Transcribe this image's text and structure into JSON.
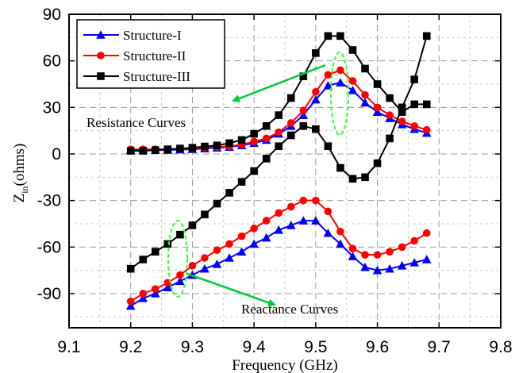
{
  "chart_data": {
    "type": "line",
    "xlabel": "Frequency (GHz)",
    "ylabel_main": "Z",
    "ylabel_sub": "in",
    "ylabel_rest": "(ohms)",
    "xlim": [
      9.1,
      9.8
    ],
    "ylim": [
      -112,
      90
    ],
    "x_ticks": [
      9.1,
      9.2,
      9.3,
      9.4,
      9.5,
      9.6,
      9.7,
      9.8
    ],
    "x_tick_labels": [
      "9.1",
      "9.2",
      "9.3",
      "9.4",
      "9.5",
      "9.6",
      "9.7",
      "9.8"
    ],
    "y_ticks": [
      90,
      60,
      30,
      0,
      -30,
      -60,
      -90
    ],
    "y_tick_labels": [
      "90",
      "60",
      "30",
      "0",
      "-30",
      "-60",
      "-90"
    ],
    "grid": true,
    "legend_position": "top-left",
    "x": [
      9.2,
      9.22,
      9.24,
      9.26,
      9.28,
      9.3,
      9.32,
      9.34,
      9.36,
      9.38,
      9.4,
      9.42,
      9.44,
      9.46,
      9.48,
      9.5,
      9.52,
      9.54,
      9.56,
      9.58,
      9.6,
      9.62,
      9.64,
      9.66,
      9.68
    ],
    "series": [
      {
        "name": "Structure-I",
        "color": "#0000ff",
        "marker": "triangle",
        "curves": [
          [
            2.5,
            2.5,
            2.5,
            2.5,
            2.8,
            3,
            3.5,
            4,
            4.5,
            5.5,
            7,
            9,
            13,
            18,
            25,
            35,
            44,
            46,
            41,
            33,
            27,
            23,
            19,
            16,
            13.5
          ],
          [
            -98,
            -93,
            -90,
            -86,
            -82,
            -78,
            -74,
            -71,
            -67,
            -63,
            -58,
            -54,
            -49,
            -46,
            -43,
            -43,
            -51,
            -58,
            -66,
            -73,
            -75,
            -74,
            -72,
            -70,
            -68
          ]
        ]
      },
      {
        "name": "Structure-II",
        "color": "#ff0000",
        "marker": "circle",
        "curves": [
          [
            3,
            3,
            3,
            3,
            3.2,
            3.5,
            4,
            4.5,
            5,
            6,
            8,
            10,
            14,
            20,
            28,
            40,
            51,
            54,
            47,
            38,
            30,
            25,
            21,
            18,
            15.5
          ],
          [
            -95,
            -90,
            -87,
            -83,
            -78,
            -72,
            -67,
            -62,
            -58,
            -53,
            -48,
            -43,
            -38,
            -34,
            -30,
            -30,
            -37,
            -50,
            -61,
            -65,
            -65,
            -63,
            -60,
            -56,
            -51
          ]
        ]
      },
      {
        "name": "Structure-III",
        "color": "#000000",
        "marker": "square",
        "curves": [
          [
            2,
            2,
            2.5,
            3,
            3.5,
            4,
            4.8,
            5.5,
            7,
            9,
            13,
            18,
            25,
            36,
            50,
            65,
            76,
            76,
            67,
            55,
            45,
            36,
            27,
            32,
            32
          ],
          [
            -74,
            -68,
            -63,
            -58,
            -52,
            -46,
            -39,
            -32,
            -25,
            -18,
            -11,
            -3,
            5,
            12,
            18,
            16,
            5,
            -9,
            -16,
            -15,
            -6,
            10,
            30,
            48,
            76
          ]
        ]
      }
    ],
    "annotations": {
      "resistance": "Resistance Curves",
      "reactance": "Reactance Curves"
    }
  }
}
